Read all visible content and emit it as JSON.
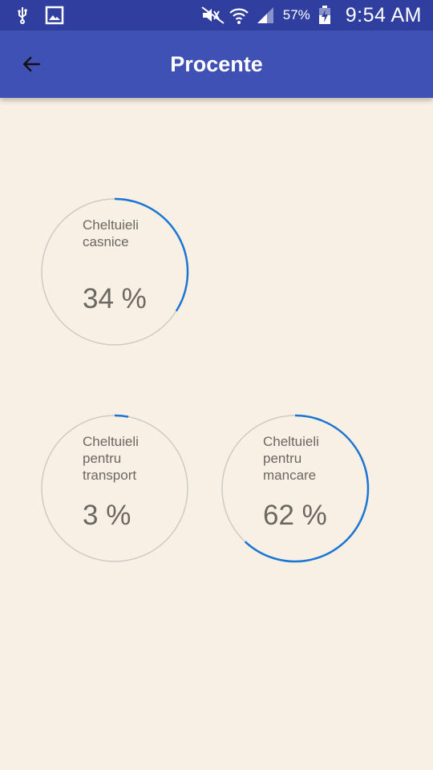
{
  "status_bar": {
    "battery": "57%",
    "time": "9:54 AM"
  },
  "app_bar": {
    "title": "Procente"
  },
  "colors": {
    "status_bar": "#303f9f",
    "app_bar": "#3f51b5",
    "background": "#f8efe5",
    "ring_track": "#cfcac4",
    "ring_progress": "#1976d2"
  },
  "cards": [
    {
      "label_lines": [
        "Cheltuieli",
        "casnice"
      ],
      "percent_text": "34 %",
      "fraction": 0.34
    },
    {
      "label_lines": [
        "Cheltuieli",
        "pentru",
        "transport"
      ],
      "percent_text": "3 %",
      "fraction": 0.03
    },
    {
      "label_lines": [
        "Cheltuieli",
        "pentru",
        "mancare"
      ],
      "percent_text": "62 %",
      "fraction": 0.62
    }
  ]
}
